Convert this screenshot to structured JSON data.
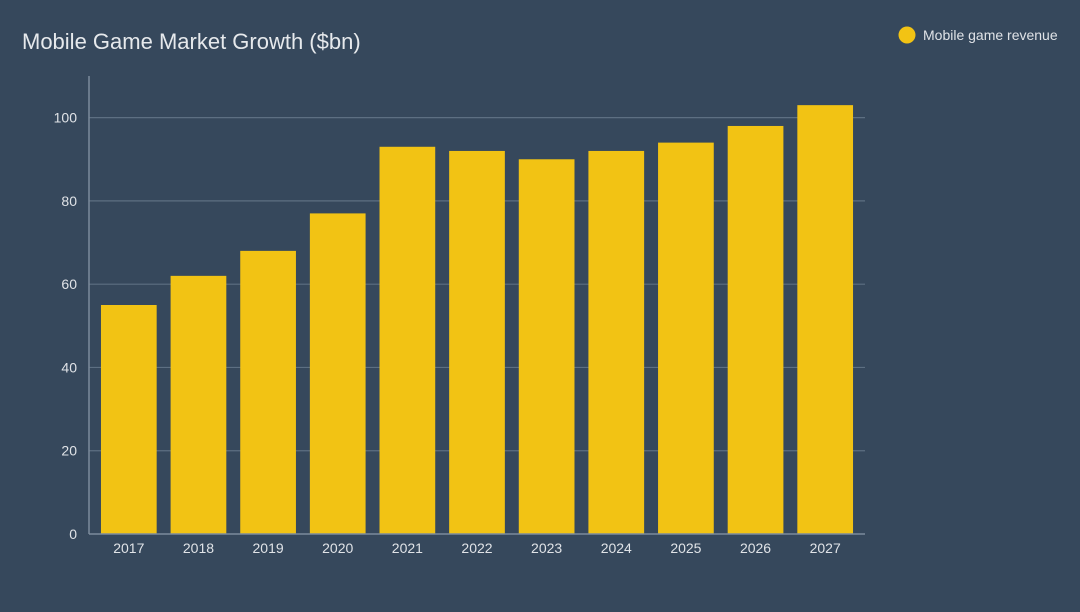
{
  "colors": {
    "background": "#36485c",
    "bar": "#f2c314",
    "grid": "#5d6f82",
    "text": "#e0e3e7"
  },
  "chart_data": {
    "type": "bar",
    "title": "Mobile Game Market Growth ($bn)",
    "xlabel": "",
    "ylabel": "",
    "categories": [
      "2017",
      "2018",
      "2019",
      "2020",
      "2021",
      "2022",
      "2023",
      "2024",
      "2025",
      "2026",
      "2027"
    ],
    "series": [
      {
        "name": "Mobile game revenue",
        "values": [
          55,
          62,
          68,
          77,
          93,
          92,
          90,
          92,
          94,
          98,
          103
        ]
      }
    ],
    "ylim": [
      0,
      110
    ],
    "yticks": [
      0,
      20,
      40,
      60,
      80,
      100
    ],
    "grid": true,
    "legend_position": "top-right"
  }
}
